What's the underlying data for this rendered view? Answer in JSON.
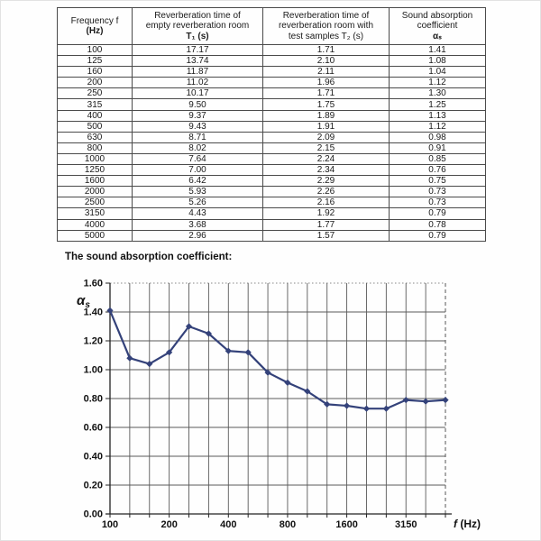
{
  "page": {
    "caption": "The sound absorption coefficient:"
  },
  "table": {
    "headers": [
      {
        "lines": [
          "Frequency f",
          "(Hz)"
        ],
        "bold_last": true
      },
      {
        "lines": [
          "Reverberation time of",
          "empty reverberation room",
          "T₁ (s)"
        ],
        "bold_last": true
      },
      {
        "lines": [
          "Reverberation time of",
          "reverberation room with",
          "test samples T₂ (s)"
        ],
        "bold_last": false
      },
      {
        "lines": [
          "Sound absorption",
          "coefficient",
          "αₛ"
        ],
        "bold_last": true
      }
    ],
    "rows": [
      [
        "100",
        "17.17",
        "1.71",
        "1.41"
      ],
      [
        "125",
        "13.74",
        "2.10",
        "1.08"
      ],
      [
        "160",
        "11.87",
        "2.11",
        "1.04"
      ],
      [
        "200",
        "11.02",
        "1.96",
        "1.12"
      ],
      [
        "250",
        "10.17",
        "1.71",
        "1.30"
      ],
      [
        "315",
        "9.50",
        "1.75",
        "1.25"
      ],
      [
        "400",
        "9.37",
        "1.89",
        "1.13"
      ],
      [
        "500",
        "9.43",
        "1.91",
        "1.12"
      ],
      [
        "630",
        "8.71",
        "2.09",
        "0.98"
      ],
      [
        "800",
        "8.02",
        "2.15",
        "0.91"
      ],
      [
        "1000",
        "7.64",
        "2.24",
        "0.85"
      ],
      [
        "1250",
        "7.00",
        "2.34",
        "0.76"
      ],
      [
        "1600",
        "6.42",
        "2.29",
        "0.75"
      ],
      [
        "2000",
        "5.93",
        "2.26",
        "0.73"
      ],
      [
        "2500",
        "5.26",
        "2.16",
        "0.73"
      ],
      [
        "3150",
        "4.43",
        "1.92",
        "0.79"
      ],
      [
        "4000",
        "3.68",
        "1.77",
        "0.78"
      ],
      [
        "5000",
        "2.96",
        "1.57",
        "0.79"
      ]
    ]
  },
  "chart_data": {
    "type": "line",
    "title": "The sound absorption coefficient",
    "categories": [
      "100",
      "125",
      "160",
      "200",
      "250",
      "315",
      "400",
      "500",
      "630",
      "800",
      "1000",
      "1250",
      "1600",
      "2000",
      "2500",
      "3150",
      "4000",
      "5000"
    ],
    "values": [
      1.41,
      1.08,
      1.04,
      1.12,
      1.3,
      1.25,
      1.13,
      1.12,
      0.98,
      0.91,
      0.85,
      0.76,
      0.75,
      0.73,
      0.73,
      0.79,
      0.78,
      0.79
    ],
    "xlabel_symbol": "f",
    "xlabel_unit": "(Hz)",
    "ylabel_symbol": "α",
    "ylabel_sub": "s",
    "ylim": [
      0,
      1.6
    ],
    "ytick_step": 0.2,
    "xtick_labels": [
      "100",
      "200",
      "400",
      "800",
      "1600",
      "3150"
    ],
    "grid": true,
    "legend": "none",
    "marker": "diamond",
    "line_color": "#34427a",
    "grid_color": "#5a5a5a"
  }
}
